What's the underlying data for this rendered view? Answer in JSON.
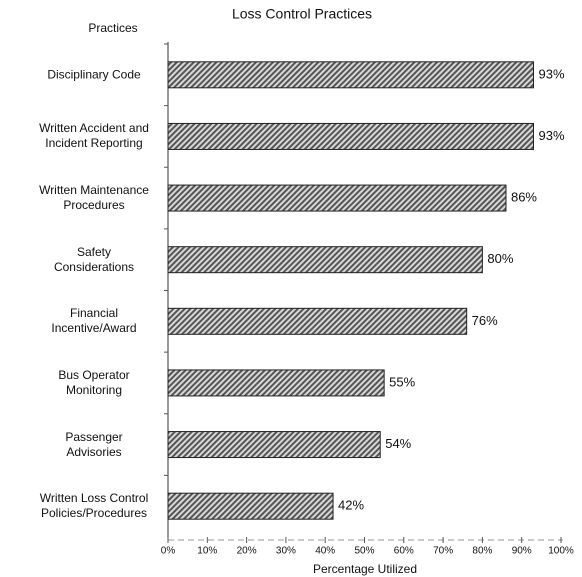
{
  "chart_data": {
    "type": "bar",
    "orientation": "horizontal",
    "title": "Loss Control Practices",
    "y_axis_title": "Practices",
    "x_axis_title": "Percentage Utilized",
    "categories": [
      "Disciplinary Code",
      "Written Accident and\nIncident Reporting",
      "Written Maintenance\nProcedures",
      "Safety\nConsiderations",
      "Financial\nIncentive/Award",
      "Bus Operator\nMonitoring",
      "Passenger\nAdvisories",
      "Written Loss Control\nPolicies/Procedures"
    ],
    "values": [
      93,
      93,
      86,
      80,
      76,
      55,
      54,
      42
    ],
    "value_labels": [
      "93%",
      "93%",
      "86%",
      "80%",
      "76%",
      "55%",
      "54%",
      "42%"
    ],
    "color": "#555555",
    "xlim": [
      0,
      100
    ],
    "xticks": [
      {
        "value": 0,
        "label": "0%"
      },
      {
        "value": 10,
        "label": "10%"
      },
      {
        "value": 20,
        "label": "20%"
      },
      {
        "value": 30,
        "label": "30%"
      },
      {
        "value": 40,
        "label": "40%"
      },
      {
        "value": 50,
        "label": "50%"
      },
      {
        "value": 60,
        "label": "60%"
      },
      {
        "value": 70,
        "label": "70%"
      },
      {
        "value": 80,
        "label": "80%"
      },
      {
        "value": 90,
        "label": "90%"
      },
      {
        "value": 100,
        "label": "100%"
      }
    ],
    "grid": false
  }
}
